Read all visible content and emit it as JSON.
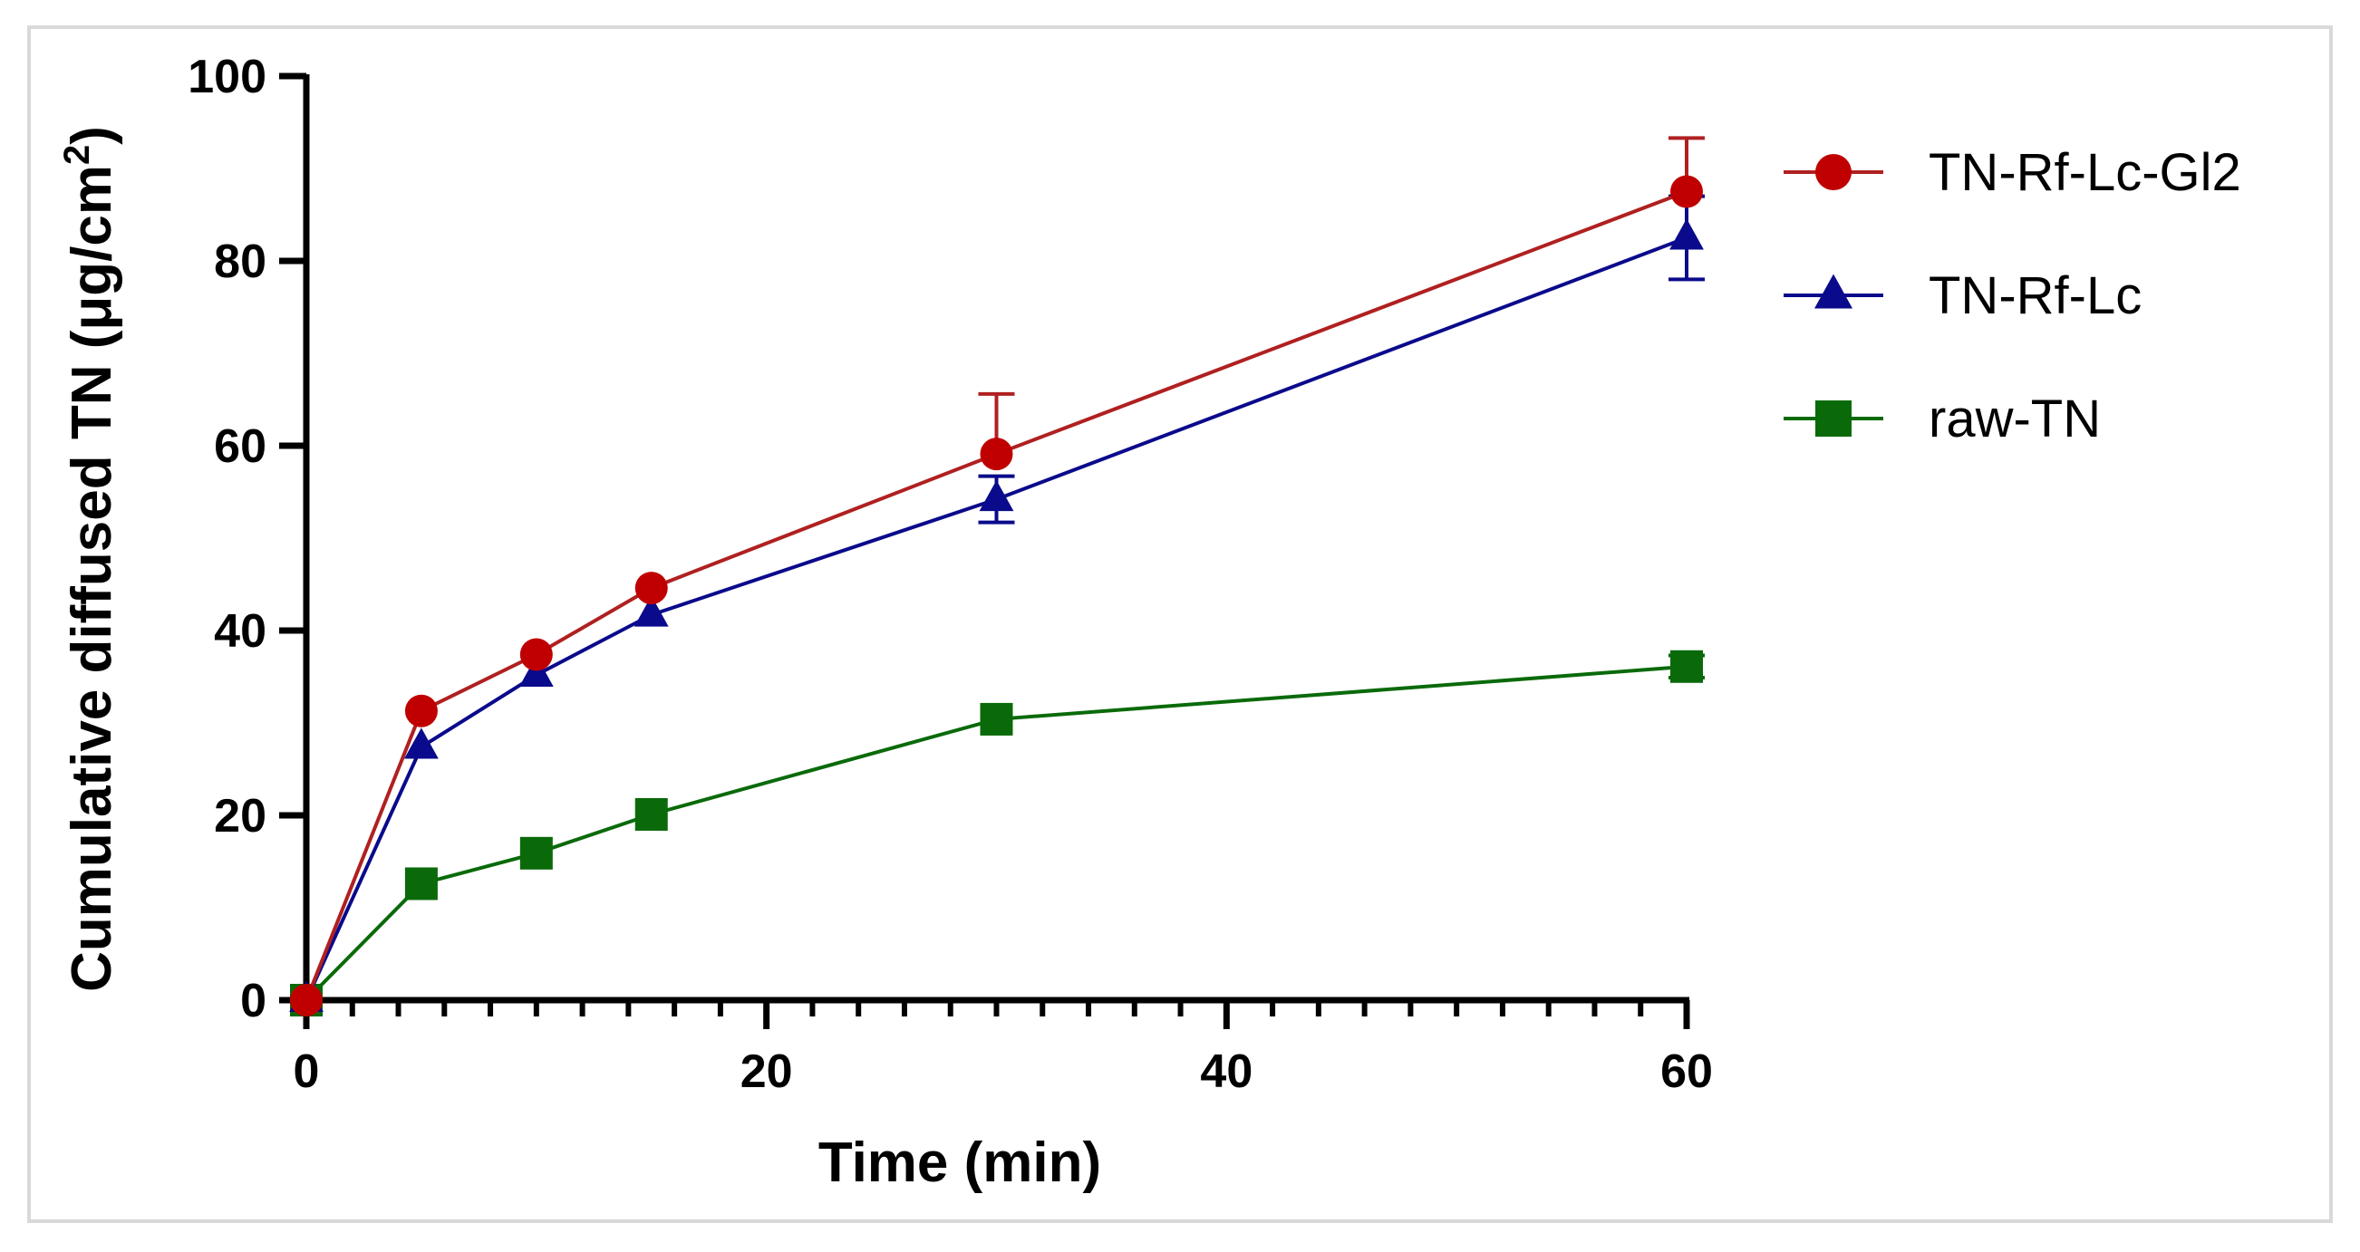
{
  "chart_data": {
    "type": "line",
    "title": "",
    "xlabel": "Time (min)",
    "ylabel": "Cumulative diffused TN (μg/cm",
    "ylabel_superscript": "2",
    "ylabel_suffix": ")",
    "xlim": [
      0,
      60
    ],
    "ylim": [
      0,
      100
    ],
    "x_ticks": [
      0,
      20,
      40,
      60
    ],
    "x_minor_step": 2,
    "y_ticks": [
      0,
      20,
      40,
      60,
      80,
      100
    ],
    "x": [
      0,
      5,
      10,
      15,
      30,
      60
    ],
    "grid": false,
    "legend_position": "right",
    "series": [
      {
        "name": "TN-Rf-Lc-Gl2",
        "color": "#c00000",
        "line_color": "#b02020",
        "marker": "circle",
        "values": [
          0,
          31.3,
          37.4,
          44.6,
          59.1,
          87.5
        ],
        "error": [
          0,
          0,
          0,
          0,
          6.5,
          5.8
        ]
      },
      {
        "name": "TN-Rf-Lc",
        "color": "#0a0a8c",
        "line_color": "#0a0a8c",
        "marker": "triangle",
        "values": [
          0,
          27.4,
          35.2,
          41.7,
          54.2,
          82.5
        ],
        "error": [
          0,
          0,
          0,
          0,
          2.5,
          4.5
        ]
      },
      {
        "name": "raw-TN",
        "color": "#0a6a0a",
        "line_color": "#0a6a0a",
        "marker": "square",
        "values": [
          0,
          12.6,
          15.9,
          20.1,
          30.4,
          36.1
        ],
        "error": [
          0,
          0,
          0,
          0,
          0,
          1.2
        ]
      }
    ]
  }
}
